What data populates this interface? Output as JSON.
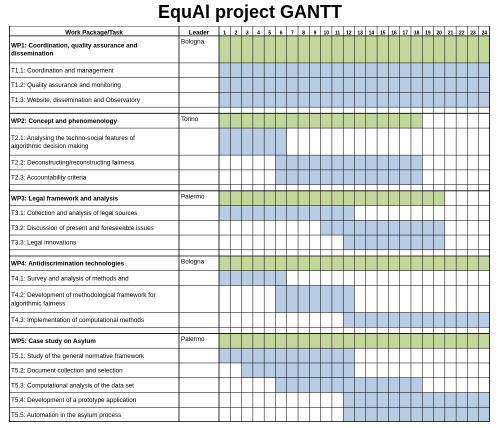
{
  "title": "EquAl project GANTT",
  "header": {
    "task_col": "Work Package/Task",
    "leader_col": "Leader"
  },
  "months": [
    "1",
    "2",
    "3",
    "4",
    "5",
    "6",
    "7",
    "8",
    "9",
    "10",
    "11",
    "12",
    "13",
    "14",
    "15",
    "16",
    "17",
    "18",
    "19",
    "20",
    "21",
    "22",
    "23",
    "24"
  ],
  "colors": {
    "wp": "#c4d79b",
    "task": "#b8cce4",
    "grid": "#000000"
  },
  "packages": [
    {
      "label": "WP1: Coordination, quality assurance and dissemination",
      "leader": "Bologna",
      "start": 1,
      "end": 24,
      "tasks": [
        {
          "label": "T1.1: Coordination and management",
          "start": 1,
          "end": 24
        },
        {
          "label": "T1.2: Quality assurance and monitoring",
          "start": 1,
          "end": 24
        },
        {
          "label": "T1.3: Website, dissemination and Observatory",
          "start": 1,
          "end": 24
        }
      ]
    },
    {
      "label": "WP2: Concept and phenomenology",
      "leader": "Torino",
      "start": 1,
      "end": 18,
      "tasks": [
        {
          "label": "T2.1: Analysing the techno-social features of algorithmic decision making",
          "start": 1,
          "end": 6
        },
        {
          "label": "T2.2: Deconstructing/reconstructing fairness",
          "start": 6,
          "end": 18
        },
        {
          "label": "T2.3: Accountability criteria",
          "start": 6,
          "end": 18
        }
      ]
    },
    {
      "label": "WP3: Legal framework and analysis",
      "leader": "Palermo",
      "start": 1,
      "end": 20,
      "tasks": [
        {
          "label": "T3.1: Collection and analysis of legal sources",
          "start": 1,
          "end": 12
        },
        {
          "label": "T3.2: Discussion of present and foreseeable issues",
          "start": 10,
          "end": 20
        },
        {
          "label": "T3.3: Legal innovations",
          "start": 12,
          "end": 20
        }
      ]
    },
    {
      "label": "WP4: Antidiscrimination technologies",
      "leader": "Bologna",
      "start": 1,
      "end": 24,
      "tasks": [
        {
          "label": "T4.1: Survey and analysis of methods and",
          "start": 1,
          "end": 6
        },
        {
          "label": "T4.2: Development of methodological framework for algorithmic fairness",
          "start": 6,
          "end": 12
        },
        {
          "label": "T4.3: Implementation of computational methods",
          "start": 12,
          "end": 24
        }
      ]
    },
    {
      "label": "WP5: Case study on Asylum",
      "leader": "Palermo",
      "start": 1,
      "end": 24,
      "tasks": [
        {
          "label": "T5.1: Study of the general normative framework",
          "start": 1,
          "end": 12
        },
        {
          "label": "T5.2: Document collection and selection",
          "start": 3,
          "end": 12
        },
        {
          "label": "T5.3: Computational analysis of the data set",
          "start": 6,
          "end": 18
        },
        {
          "label": "T5.4: Development of a prototype application",
          "start": 12,
          "end": 24
        },
        {
          "label": "T5.5: Automation in the asylum process",
          "start": 12,
          "end": 24
        }
      ]
    }
  ]
}
